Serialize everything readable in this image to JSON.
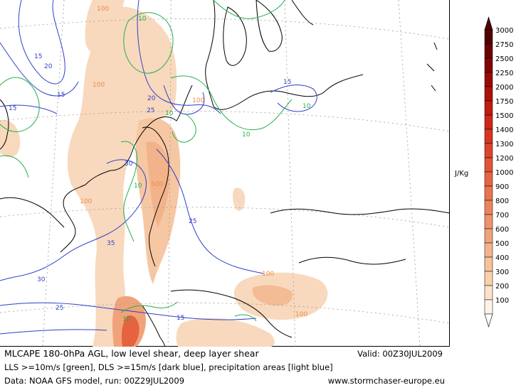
{
  "caption": {
    "line1": "MLCAPE 180-0hPa AGL, low level shear, deep layer shear",
    "line2": "LLS >=10m/s [green], DLS >=15m/s [dark blue], precipitation areas [light blue]",
    "line3": "Data: NOAA GFS model, run: 00Z29JUL2009",
    "valid": "Valid: 00Z30JUL2009",
    "website": "www.stormchaser-europe.eu"
  },
  "colorbar": {
    "unit": "J/Kg",
    "levels": [
      "100",
      "200",
      "300",
      "400",
      "500",
      "600",
      "700",
      "800",
      "900",
      "1000",
      "1200",
      "1300",
      "1400",
      "1500",
      "1750",
      "2000",
      "2250",
      "2500",
      "2750",
      "3000"
    ],
    "colors": [
      "#fdf3e8",
      "#fbe2c8",
      "#f8d1ad",
      "#f6c29a",
      "#f3b38a",
      "#f0a37a",
      "#ee936b",
      "#eb845d",
      "#e8744f",
      "#e56442",
      "#e15536",
      "#dc452b",
      "#d63621",
      "#cd2817",
      "#c01c10",
      "#ad120a",
      "#980a06",
      "#810503",
      "#6a0201",
      "#520000"
    ]
  },
  "contour_labels": {
    "dls_blue": [
      "15",
      "20",
      "15",
      "20",
      "25",
      "30",
      "35",
      "30",
      "25",
      "25",
      "15",
      "15",
      "15"
    ],
    "lls_green": [
      "10",
      "10",
      "10",
      "10",
      "10",
      "10"
    ],
    "cape_orange": [
      "100",
      "100",
      "100",
      "100",
      "500",
      "100",
      "100"
    ]
  },
  "colors": {
    "lls": "#22b14c",
    "dls": "#2f3fc8",
    "cape_label": "#f08a4b",
    "coast": "#000000"
  }
}
